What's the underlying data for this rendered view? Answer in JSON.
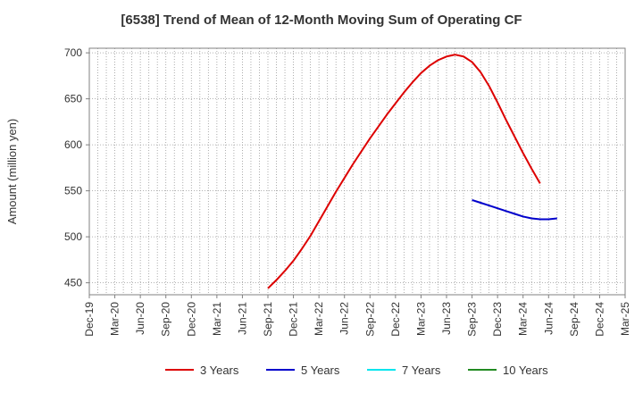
{
  "chart_data": {
    "type": "line",
    "title": "[6538]  Trend of Mean of 12-Month Moving Sum of Operating CF",
    "xlabel": "",
    "ylabel": "Amount (million yen)",
    "ylim": [
      437,
      705
    ],
    "yticks": [
      450,
      500,
      550,
      600,
      650,
      700
    ],
    "x_tick_labels": [
      "Dec-19",
      "Mar-20",
      "Jun-20",
      "Sep-20",
      "Dec-20",
      "Mar-21",
      "Jun-21",
      "Sep-21",
      "Dec-21",
      "Mar-22",
      "Jun-22",
      "Sep-22",
      "Dec-22",
      "Mar-23",
      "Jun-23",
      "Sep-23",
      "Dec-23",
      "Mar-24",
      "Jun-24",
      "Sep-24",
      "Dec-24",
      "Mar-25"
    ],
    "x_start": "Dec-19",
    "x_months": 63,
    "grid": true,
    "legend_position": "bottom",
    "series": [
      {
        "name": "3 Years",
        "color": "#dd0000",
        "start_month": 21,
        "values": [
          444,
          453,
          463,
          474,
          487,
          501,
          517,
          533,
          549,
          564,
          579,
          593,
          607,
          620,
          633,
          645,
          657,
          668,
          678,
          686,
          692,
          696,
          698,
          696,
          690,
          679,
          664,
          646,
          627,
          609,
          591,
          574,
          558
        ]
      },
      {
        "name": "5 Years",
        "color": "#0000cc",
        "start_month": 45,
        "values": [
          540,
          537,
          534,
          531,
          528,
          525,
          522,
          520,
          519,
          519,
          520
        ]
      },
      {
        "name": "7 Years",
        "color": "#00e5ee",
        "start_month": null,
        "values": []
      },
      {
        "name": "10 Years",
        "color": "#228b22",
        "start_month": null,
        "values": []
      }
    ]
  }
}
